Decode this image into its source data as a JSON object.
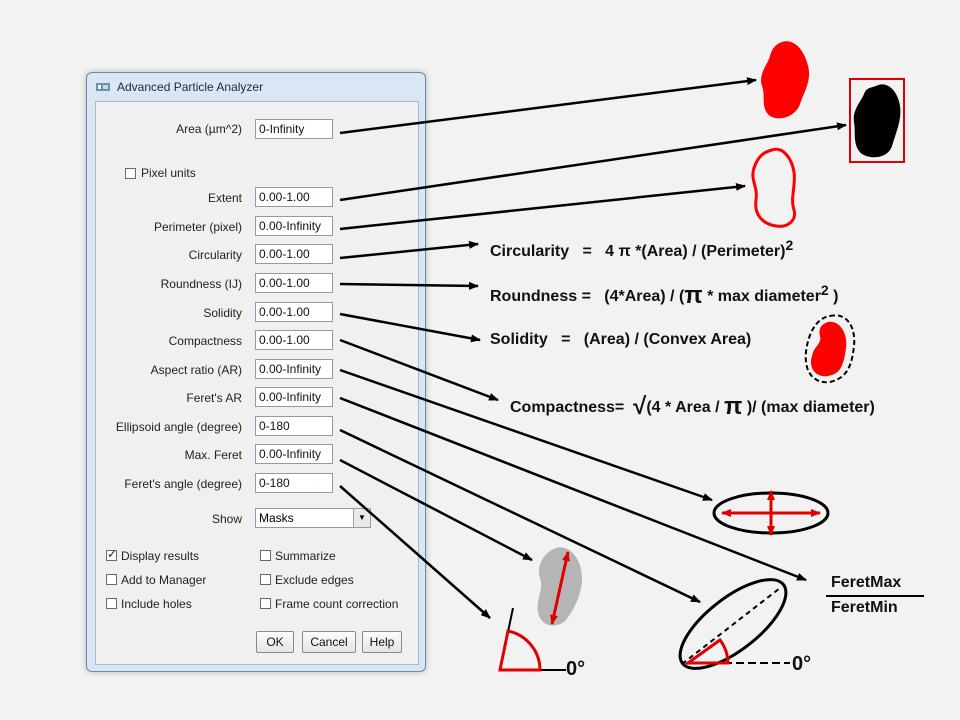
{
  "dialog": {
    "title": "Advanced Particle Analyzer",
    "fields": [
      {
        "label": "Area (µm^2)",
        "value": "0-Infinity"
      },
      {
        "label": "Extent",
        "value": "0.00-1.00"
      },
      {
        "label": "Perimeter (pixel)",
        "value": "0.00-Infinity"
      },
      {
        "label": "Circularity",
        "value": "0.00-1.00"
      },
      {
        "label": "Roundness (IJ)",
        "value": "0.00-1.00"
      },
      {
        "label": "Solidity",
        "value": "0.00-1.00"
      },
      {
        "label": "Compactness",
        "value": "0.00-1.00"
      },
      {
        "label": "Aspect ratio (AR)",
        "value": "0.00-Infinity"
      },
      {
        "label": "Feret's AR",
        "value": "0.00-Infinity"
      },
      {
        "label": "Ellipsoid angle (degree)",
        "value": "0-180"
      },
      {
        "label": "Max. Feret",
        "value": "0.00-Infinity"
      },
      {
        "label": "Feret's angle (degree)",
        "value": "0-180"
      }
    ],
    "pixel_units": {
      "label": "Pixel units",
      "checked": false
    },
    "show": {
      "label": "Show",
      "value": "Masks"
    },
    "checkboxes": [
      {
        "label": "Display results",
        "checked": true
      },
      {
        "label": "Summarize",
        "checked": false
      },
      {
        "label": "Add to Manager",
        "checked": false
      },
      {
        "label": "Exclude edges",
        "checked": false
      },
      {
        "label": "Include holes",
        "checked": false
      },
      {
        "label": "Frame count correction",
        "checked": false
      }
    ],
    "buttons": {
      "ok": "OK",
      "cancel": "Cancel",
      "help": "Help"
    }
  },
  "formulas": {
    "circularity": {
      "prefix": "Circularity   =   4 π *(Area) / (Perimeter)",
      "sup": "2"
    },
    "roundness": {
      "prefix": "Roundness =   (4*Area) / (",
      "pi": "π",
      "middle": " * max diameter",
      "sup": "2",
      "suffix": " )"
    },
    "solidity": {
      "text": "Solidity   =   (Area) / (Convex Area)"
    },
    "compactness": {
      "prefix": "Compactness=  ",
      "sqrt": "√",
      "middle": "(4 * Area / ",
      "pi": "π",
      "suffix": " )/ (max diameter)"
    },
    "feret_ratio": {
      "numerator": "FeretMax",
      "denominator": "FeretMin"
    },
    "angle_label_1": "0°",
    "angle_label_2": "0°"
  },
  "colors": {
    "accent": "#ff0000",
    "dialog_frame": "#d9e6f3"
  }
}
